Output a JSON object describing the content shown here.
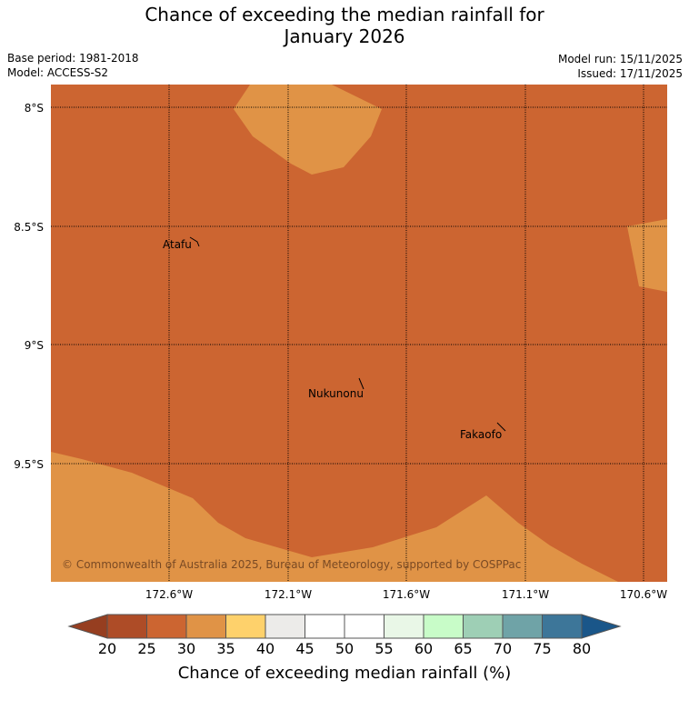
{
  "title": {
    "line1": "Chance of exceeding the median rainfall for",
    "line2": "January 2026"
  },
  "meta": {
    "base_period": "Base period: 1981-2018",
    "model": "Model: ACCESS-S2",
    "model_run": "Model run: 15/11/2025",
    "issued": "Issued: 17/11/2025"
  },
  "map": {
    "background_category": "25-30",
    "region_color": "#cc6531",
    "region_colors": {
      "25-30": "#cc6531",
      "30-35": "#e09346"
    },
    "lat_labels": [
      "8°S",
      "8.5°S",
      "9°S",
      "9.5°S"
    ],
    "lon_labels": [
      "172.6°W",
      "172.1°W",
      "171.6°W",
      "171.1°W",
      "170.6°W"
    ],
    "places": [
      "Atafu",
      "Nukunonu",
      "Fakaofo"
    ],
    "copyright": "© Commonwealth of Australia 2025, Bureau of Meteorology, supported by COSPPac"
  },
  "colorbar": {
    "ticks": [
      "20",
      "25",
      "30",
      "35",
      "40",
      "45",
      "50",
      "55",
      "60",
      "65",
      "70",
      "75",
      "80"
    ],
    "colors": [
      "#ae4c27",
      "#cc6531",
      "#e09346",
      "#fed16b",
      "#ecebe9",
      "#ffffff",
      "#ffffff",
      "#e9f7e7",
      "#c8fcc8",
      "#9ecfb5",
      "#6fa3a7",
      "#3d7699"
    ],
    "under_color": "#963e20",
    "over_color": "#1a5689",
    "label": "Chance of exceeding median rainfall (%)"
  }
}
